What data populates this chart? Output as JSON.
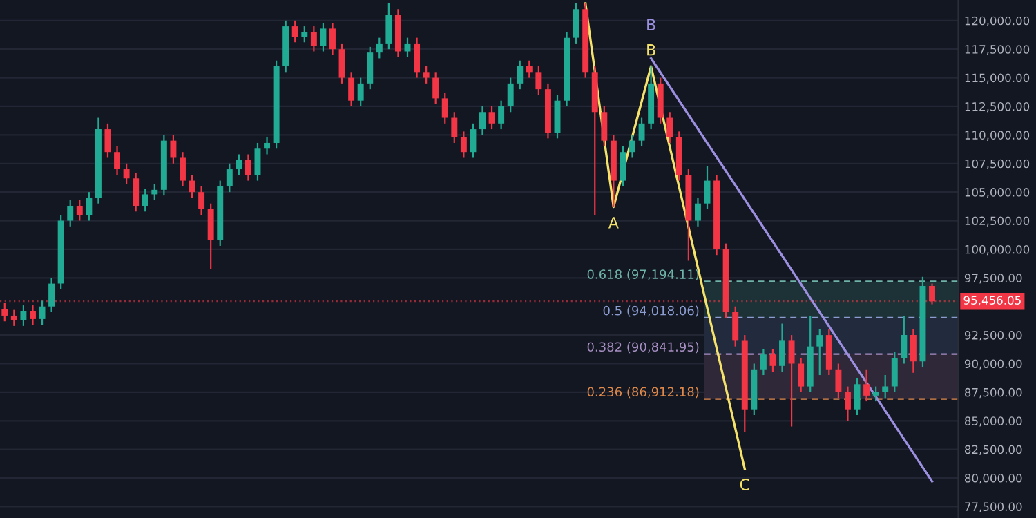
{
  "chart_data": {
    "type": "candlestick",
    "categories": [
      null,
      null,
      null,
      null,
      null,
      null,
      null,
      null,
      null,
      null,
      null,
      null,
      null,
      null,
      null,
      null,
      null,
      null,
      null,
      null,
      null,
      null,
      null,
      null,
      null,
      null,
      null,
      null,
      null,
      null,
      null,
      null,
      null,
      null,
      null,
      null,
      null,
      null,
      null,
      null,
      null,
      null,
      null,
      null,
      null,
      null,
      null,
      null,
      null,
      null,
      null,
      null,
      null,
      null,
      null,
      null,
      null,
      null,
      null,
      null,
      null,
      null,
      null,
      null,
      null,
      null,
      null,
      null,
      null,
      null,
      null,
      null,
      null,
      null,
      null,
      null,
      null,
      null,
      null,
      null,
      null,
      null,
      null,
      null,
      null,
      null,
      null,
      null,
      null,
      null,
      null,
      null,
      null,
      null,
      null,
      null,
      null,
      null,
      null,
      null
    ],
    "ohlc": [
      [
        94800,
        95300,
        93700,
        94200
      ],
      [
        94200,
        94700,
        93300,
        93800
      ],
      [
        93800,
        95100,
        93300,
        94600
      ],
      [
        94600,
        95100,
        93400,
        93900
      ],
      [
        93900,
        95500,
        93400,
        95000
      ],
      [
        95000,
        97500,
        94500,
        97000
      ],
      [
        97000,
        103000,
        96500,
        102500
      ],
      [
        102500,
        104300,
        102000,
        103800
      ],
      [
        103800,
        104300,
        102500,
        103000
      ],
      [
        103000,
        105000,
        102500,
        104500
      ],
      [
        104500,
        111500,
        104000,
        110500
      ],
      [
        110500,
        111000,
        108000,
        108500
      ],
      [
        108500,
        109000,
        106500,
        107000
      ],
      [
        107000,
        107500,
        105700,
        106200
      ],
      [
        106200,
        106700,
        103300,
        103800
      ],
      [
        103800,
        105300,
        103300,
        104800
      ],
      [
        104800,
        105700,
        104300,
        105200
      ],
      [
        105200,
        110000,
        104700,
        109500
      ],
      [
        109500,
        110000,
        107500,
        108000
      ],
      [
        108000,
        108500,
        105500,
        106000
      ],
      [
        106000,
        106500,
        104500,
        105000
      ],
      [
        105000,
        105500,
        103000,
        103500
      ],
      [
        103500,
        104000,
        98300,
        100800
      ],
      [
        100800,
        106000,
        100300,
        105500
      ],
      [
        105500,
        107500,
        105000,
        107000
      ],
      [
        107000,
        108300,
        106500,
        107800
      ],
      [
        107800,
        108300,
        106000,
        106500
      ],
      [
        106500,
        109300,
        106000,
        108800
      ],
      [
        108800,
        109800,
        108300,
        109300
      ],
      [
        109300,
        116500,
        108800,
        116000
      ],
      [
        116000,
        120000,
        115500,
        119500
      ],
      [
        119500,
        120000,
        118100,
        118600
      ],
      [
        118600,
        119500,
        118100,
        119000
      ],
      [
        119000,
        119500,
        117300,
        117800
      ],
      [
        117800,
        119800,
        117300,
        119300
      ],
      [
        119300,
        119800,
        117000,
        117500
      ],
      [
        117500,
        118000,
        114500,
        115000
      ],
      [
        115000,
        115500,
        112500,
        113000
      ],
      [
        113000,
        115000,
        112500,
        114500
      ],
      [
        114500,
        117700,
        114000,
        117200
      ],
      [
        117200,
        118500,
        116700,
        118000
      ],
      [
        118000,
        121500,
        117500,
        120500
      ],
      [
        120500,
        121000,
        116800,
        117300
      ],
      [
        117300,
        118500,
        116800,
        118000
      ],
      [
        118000,
        118500,
        115000,
        115500
      ],
      [
        115500,
        116000,
        114500,
        115000
      ],
      [
        115000,
        115500,
        112700,
        113200
      ],
      [
        113200,
        113700,
        111000,
        111500
      ],
      [
        111500,
        112000,
        109300,
        109800
      ],
      [
        109800,
        110300,
        108000,
        108500
      ],
      [
        108500,
        111000,
        108000,
        110500
      ],
      [
        110500,
        112500,
        110000,
        112000
      ],
      [
        112000,
        112500,
        110500,
        111000
      ],
      [
        111000,
        113000,
        110500,
        112500
      ],
      [
        112500,
        115000,
        112000,
        114500
      ],
      [
        114500,
        116500,
        114000,
        116000
      ],
      [
        116000,
        116500,
        115000,
        115500
      ],
      [
        115500,
        116000,
        113500,
        114000
      ],
      [
        114000,
        114500,
        109700,
        110200
      ],
      [
        110200,
        113500,
        109700,
        113000
      ],
      [
        113000,
        119000,
        112500,
        118500
      ],
      [
        118500,
        121500,
        118000,
        121000
      ],
      [
        121000,
        121500,
        115000,
        115500
      ],
      [
        115500,
        116000,
        103000,
        112000
      ],
      [
        112000,
        112500,
        109000,
        109500
      ],
      [
        109500,
        110000,
        103700,
        106000
      ],
      [
        106000,
        109000,
        105500,
        108500
      ],
      [
        108500,
        110000,
        108000,
        109500
      ],
      [
        109500,
        111500,
        109000,
        111000
      ],
      [
        111000,
        116000,
        110500,
        114500
      ],
      [
        114500,
        115000,
        111000,
        111500
      ],
      [
        111500,
        112000,
        109300,
        109800
      ],
      [
        109800,
        110300,
        106000,
        106500
      ],
      [
        106500,
        107000,
        99000,
        102500
      ],
      [
        102500,
        104500,
        102000,
        104000
      ],
      [
        104000,
        107300,
        103500,
        106000
      ],
      [
        106000,
        106500,
        99500,
        100000
      ],
      [
        100000,
        100500,
        94000,
        94500
      ],
      [
        94500,
        95000,
        91500,
        92000
      ],
      [
        92000,
        92500,
        84000,
        86000
      ],
      [
        86000,
        90000,
        85500,
        89500
      ],
      [
        89500,
        91300,
        89000,
        90800
      ],
      [
        90800,
        91300,
        89300,
        89800
      ],
      [
        89800,
        93500,
        89300,
        92000
      ],
      [
        92000,
        92500,
        84500,
        90000
      ],
      [
        90000,
        90500,
        87500,
        88000
      ],
      [
        88000,
        94200,
        87500,
        91500
      ],
      [
        91500,
        93000,
        89000,
        92500
      ],
      [
        92500,
        93000,
        89000,
        89500
      ],
      [
        89500,
        90000,
        87000,
        87500
      ],
      [
        87500,
        88000,
        85000,
        86000
      ],
      [
        86000,
        88700,
        85500,
        88200
      ],
      [
        88200,
        89500,
        86700,
        87200
      ],
      [
        87200,
        88000,
        86700,
        87500
      ],
      [
        87500,
        89000,
        87000,
        88000
      ],
      [
        88000,
        91000,
        87500,
        90500
      ],
      [
        90500,
        94200,
        90000,
        92500
      ],
      [
        92500,
        93000,
        89200,
        90200
      ],
      [
        90200,
        97600,
        89700,
        96800
      ],
      [
        96800,
        97000,
        95200,
        95456.05
      ]
    ],
    "series": [
      {
        "type": "line",
        "color": "#f5e26b",
        "values": [
          null,
          null,
          null,
          null,
          null,
          null,
          null,
          null,
          null,
          null,
          null,
          null,
          null,
          null,
          null,
          null,
          null,
          null,
          null,
          null,
          null,
          null,
          null,
          null,
          null,
          null,
          null,
          null,
          null,
          null,
          null,
          null,
          null,
          null,
          null,
          null,
          null,
          null,
          null,
          null,
          null,
          null,
          null,
          null,
          null,
          null,
          null,
          null,
          null,
          null,
          null,
          null,
          null,
          null,
          null,
          null,
          null,
          null,
          null,
          null,
          null,
          null,
          121500,
          null,
          null,
          103700,
          null,
          null,
          null,
          116000,
          null,
          null,
          null,
          null,
          null,
          null,
          null,
          null,
          null,
          80800,
          null,
          null,
          null,
          null,
          null,
          null,
          null,
          null,
          null,
          null,
          null,
          null,
          null,
          null,
          null,
          null,
          null,
          null,
          null,
          null
        ]
      },
      {
        "type": "line",
        "color": "#9c8fe0",
        "values": [
          null,
          null,
          null,
          null,
          null,
          null,
          null,
          null,
          null,
          null,
          null,
          null,
          null,
          null,
          null,
          null,
          null,
          null,
          null,
          null,
          null,
          null,
          null,
          null,
          null,
          null,
          null,
          null,
          null,
          null,
          null,
          null,
          null,
          null,
          null,
          null,
          null,
          null,
          null,
          null,
          null,
          null,
          null,
          null,
          null,
          null,
          null,
          null,
          null,
          null,
          null,
          null,
          null,
          null,
          null,
          null,
          null,
          null,
          null,
          null,
          null,
          null,
          null,
          null,
          null,
          null,
          null,
          null,
          null,
          116700,
          null,
          null,
          null,
          null,
          null,
          null,
          null,
          null,
          null,
          null,
          null,
          null,
          null,
          null,
          null,
          null,
          null,
          null,
          null,
          null,
          null,
          null,
          null,
          null,
          null,
          null,
          null,
          null,
          null,
          79700
        ]
      }
    ],
    "annotations": [
      {
        "text": "A",
        "y": 103700
      },
      {
        "text": "B",
        "y": 116000
      },
      {
        "text": "B",
        "y": 116700
      },
      {
        "text": "C",
        "y": 80800
      }
    ],
    "ref_lines": [
      {
        "axis": "y",
        "value": 95456.05,
        "label": "95,456.05",
        "color": "#f23645",
        "line_style": "dotted"
      },
      {
        "axis": "y",
        "value": 97194.11,
        "label": "0.618 (97,194.11)",
        "color": "#6fb3a8",
        "line_style": "dashed"
      },
      {
        "axis": "y",
        "value": 94018.06,
        "label": "0.5 (94,018.06)",
        "color": "#8a9cd0",
        "line_style": "dashed"
      },
      {
        "axis": "y",
        "value": 90841.95,
        "label": "0.382 (90,841.95)",
        "color": "#a88fc4",
        "line_style": "dashed"
      },
      {
        "axis": "y",
        "value": 86912.18,
        "label": "0.236 (86,912.18)",
        "color": "#e0894a",
        "line_style": "dashed"
      }
    ],
    "bands": [
      {
        "axis": "y",
        "from": 86912.18,
        "to": 90841.95,
        "color": "#2e2838"
      },
      {
        "axis": "y",
        "from": 90841.95,
        "to": 94018.06,
        "color": "#222a3e"
      },
      {
        "axis": "y",
        "from": 94018.06,
        "to": 97194.11,
        "color": "#1c3236"
      }
    ],
    "ylim": [
      76500,
      121800
    ],
    "yticks": [
      {
        "value": 77500,
        "label": "77,500.00"
      },
      {
        "value": 80000,
        "label": "80,000.00"
      },
      {
        "value": 82500,
        "label": "82,500.00"
      },
      {
        "value": 85000,
        "label": "85,000.00"
      },
      {
        "value": 87500,
        "label": "87,500.00"
      },
      {
        "value": 90000,
        "label": "90,000.00"
      },
      {
        "value": 92500,
        "label": "92,500.00"
      },
      {
        "value": 97500,
        "label": "97,500.00"
      },
      {
        "value": 100000,
        "label": "100,000.00"
      },
      {
        "value": 102500,
        "label": "102,500.00"
      },
      {
        "value": 105000,
        "label": "105,000.00"
      },
      {
        "value": 107500,
        "label": "107,500.00"
      },
      {
        "value": 110000,
        "label": "110,000.00"
      },
      {
        "value": 112500,
        "label": "112,500.00"
      },
      {
        "value": 115000,
        "label": "115,000.00"
      },
      {
        "value": 117500,
        "label": "117,500.00"
      },
      {
        "value": 120000,
        "label": "120,000.00"
      }
    ],
    "grid": "y",
    "tick_labels": "y"
  }
}
